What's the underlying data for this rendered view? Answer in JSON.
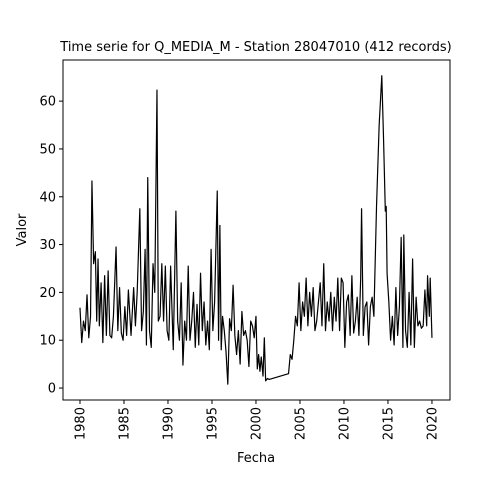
{
  "chart_data": {
    "type": "line",
    "title": "Time serie for Q_MEDIA_M - Station 28047010 (412 records)",
    "xlabel": "Fecha",
    "ylabel": "Valor",
    "color": "#000000",
    "xlim": [
      1978.07,
      2022.05
    ],
    "ylim": [
      -2.5,
      68.6
    ],
    "xticks": [
      1980,
      1985,
      1990,
      1995,
      2000,
      2005,
      2010,
      2015,
      2020
    ],
    "yticks": [
      0,
      10,
      20,
      30,
      40,
      50,
      60
    ],
    "x": [
      1980.0,
      1980.2,
      1980.4,
      1980.6,
      1980.8,
      1981.0,
      1981.2,
      1981.36,
      1981.55,
      1981.75,
      1981.9,
      1982.05,
      1982.2,
      1982.4,
      1982.6,
      1982.8,
      1983.0,
      1983.2,
      1983.4,
      1983.6,
      1983.8,
      1984.1,
      1984.3,
      1984.5,
      1984.7,
      1984.9,
      1985.1,
      1985.3,
      1985.5,
      1985.8,
      1986.1,
      1986.3,
      1986.5,
      1986.8,
      1987.0,
      1987.2,
      1987.4,
      1987.55,
      1987.7,
      1987.9,
      1988.1,
      1988.3,
      1988.5,
      1988.75,
      1988.9,
      1989.1,
      1989.3,
      1989.5,
      1989.7,
      1989.9,
      1990.1,
      1990.3,
      1990.6,
      1990.9,
      1991.1,
      1991.3,
      1991.5,
      1991.7,
      1991.9,
      1992.1,
      1992.3,
      1992.5,
      1992.7,
      1992.9,
      1993.1,
      1993.3,
      1993.5,
      1993.7,
      1993.9,
      1994.1,
      1994.3,
      1994.5,
      1994.7,
      1994.9,
      1995.1,
      1995.3,
      1995.6,
      1995.75,
      1995.9,
      1996.05,
      1996.2,
      1996.4,
      1996.6,
      1996.8,
      1997.0,
      1997.2,
      1997.4,
      1997.6,
      1997.8,
      1998.0,
      1998.2,
      1998.4,
      1998.6,
      1998.8,
      1999.0,
      1999.2,
      1999.4,
      1999.6,
      1999.8,
      2000.0,
      2000.15,
      2000.3,
      2000.45,
      2000.6,
      2000.8,
      2000.95,
      2001.1,
      2001.3,
      2001.5,
      2003.7,
      2003.9,
      2004.1,
      2004.3,
      2004.5,
      2004.7,
      2004.9,
      2005.1,
      2005.3,
      2005.5,
      2005.7,
      2005.9,
      2006.1,
      2006.3,
      2006.5,
      2006.7,
      2006.9,
      2007.1,
      2007.3,
      2007.5,
      2007.7,
      2007.9,
      2008.1,
      2008.3,
      2008.5,
      2008.7,
      2008.9,
      2009.1,
      2009.3,
      2009.5,
      2009.7,
      2009.9,
      2010.1,
      2010.3,
      2010.5,
      2010.7,
      2010.9,
      2011.1,
      2011.3,
      2011.5,
      2011.7,
      2011.9,
      2012.0,
      2012.2,
      2012.4,
      2012.6,
      2012.8,
      2013.0,
      2013.2,
      2013.4,
      2013.7,
      2014.0,
      2014.3,
      2014.5,
      2014.7,
      2014.8,
      2014.9,
      2015.1,
      2015.3,
      2015.5,
      2015.7,
      2015.9,
      2016.1,
      2016.3,
      2016.5,
      2016.7,
      2016.8,
      2017.0,
      2017.2,
      2017.4,
      2017.6,
      2017.8,
      2018.0,
      2018.2,
      2018.4,
      2018.6,
      2018.8,
      2019.0,
      2019.2,
      2019.4,
      2019.5,
      2019.7,
      2019.8,
      2020.0
    ],
    "values": [
      16.8,
      9.5,
      14,
      12,
      19.5,
      10.5,
      15,
      43.3,
      26,
      28.5,
      14,
      27,
      13,
      22,
      9.5,
      23.5,
      11,
      24.5,
      11,
      10.5,
      15,
      29.5,
      12,
      21,
      11.5,
      10,
      17,
      11,
      20.5,
      11,
      21,
      13,
      20,
      37.5,
      12,
      16,
      29,
      9,
      44,
      12,
      8.5,
      26,
      20,
      62.3,
      14,
      15,
      26,
      14,
      25.5,
      12,
      10,
      25.5,
      8,
      37,
      14,
      10,
      22,
      4.8,
      14,
      10,
      25.5,
      10,
      14,
      20,
      8.5,
      17.5,
      9,
      24,
      12,
      18,
      9,
      14,
      8,
      29,
      12,
      18,
      41.2,
      10,
      34,
      8,
      15,
      12,
      7.5,
      0.8,
      14.5,
      12,
      21.5,
      11,
      7,
      12,
      5,
      16,
      11,
      12,
      10,
      4.5,
      14,
      13,
      10.5,
      15,
      4,
      7,
      3.5,
      6.5,
      2.5,
      10.5,
      1.5,
      2,
      1.8,
      3,
      7,
      6,
      10,
      15,
      13,
      22,
      12,
      18,
      15,
      23,
      13,
      20,
      15,
      21,
      12,
      14,
      18,
      22,
      13,
      26,
      12,
      18,
      14,
      20,
      12,
      19,
      14,
      23,
      12,
      23,
      22,
      8.5,
      18,
      19.5,
      11,
      23.5,
      11.5,
      14,
      19,
      11,
      23,
      37.5,
      11,
      17,
      18,
      9,
      17,
      19,
      15,
      38,
      55,
      65.3,
      52,
      37,
      38,
      24,
      18,
      10,
      15,
      9,
      21,
      11,
      17,
      31.5,
      8.5,
      32,
      12,
      8.5,
      20,
      9,
      27,
      8.5,
      19,
      13,
      14,
      12.5,
      13,
      20.5,
      13,
      23.5,
      15,
      23,
      10.5
    ]
  }
}
